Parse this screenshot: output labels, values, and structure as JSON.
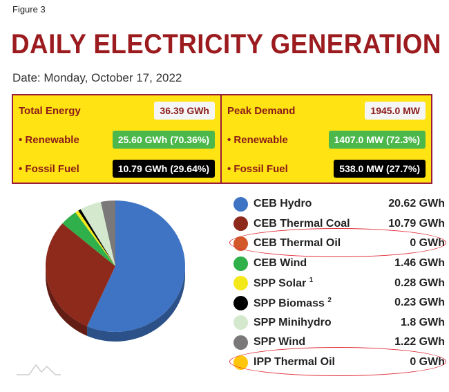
{
  "figure_label": "Figure 3",
  "title": "DAILY ELECTRICITY GENERATION",
  "date": "Date: Monday, October 17, 2022",
  "energy": {
    "total_label": "Total Energy",
    "total": "36.39 GWh",
    "renewable_label": "• Renewable",
    "renewable": "25.60 GWh (70.36%)",
    "fossil_label": "• Fossil Fuel",
    "fossil": "10.79 GWh (29.64%)"
  },
  "demand": {
    "peak_label": "Peak Demand",
    "peak": "1945.0 MW",
    "renewable_label": "• Renewable",
    "renewable": "1407.0 MW (72.3%)",
    "fossil_label": "• Fossil Fuel",
    "fossil": "538.0 MW (27.7%)"
  },
  "chart_data": {
    "type": "pie",
    "unit": "GWh",
    "slices": [
      {
        "name": "CEB Hydro",
        "sup": "",
        "value": 20.62,
        "label": "20.62 GWh",
        "color": "#3f74c4"
      },
      {
        "name": "CEB Thermal Coal",
        "sup": "",
        "value": 10.79,
        "label": "10.79 GWh",
        "color": "#8e2a1c"
      },
      {
        "name": "CEB Thermal Oil",
        "sup": "",
        "value": 0,
        "label": "0 GWh",
        "color": "#d2582a"
      },
      {
        "name": "CEB Wind",
        "sup": "",
        "value": 1.46,
        "label": "1.46 GWh",
        "color": "#2fb04a"
      },
      {
        "name": "SPP Solar",
        "sup": "1",
        "value": 0.28,
        "label": "0.28 GWh",
        "color": "#f2e81a"
      },
      {
        "name": "SPP Biomass",
        "sup": "2",
        "value": 0.23,
        "label": "0.23 GWh",
        "color": "#000000"
      },
      {
        "name": "SPP Minihydro",
        "sup": "",
        "value": 1.8,
        "label": "1.8 GWh",
        "color": "#d3e8cc"
      },
      {
        "name": "SPP Wind",
        "sup": "",
        "value": 1.22,
        "label": "1.22 GWh",
        "color": "#7a7878"
      },
      {
        "name": "IPP Thermal Oil",
        "sup": "",
        "value": 0,
        "label": "0 GWh",
        "color": "#ffc60b"
      }
    ]
  }
}
